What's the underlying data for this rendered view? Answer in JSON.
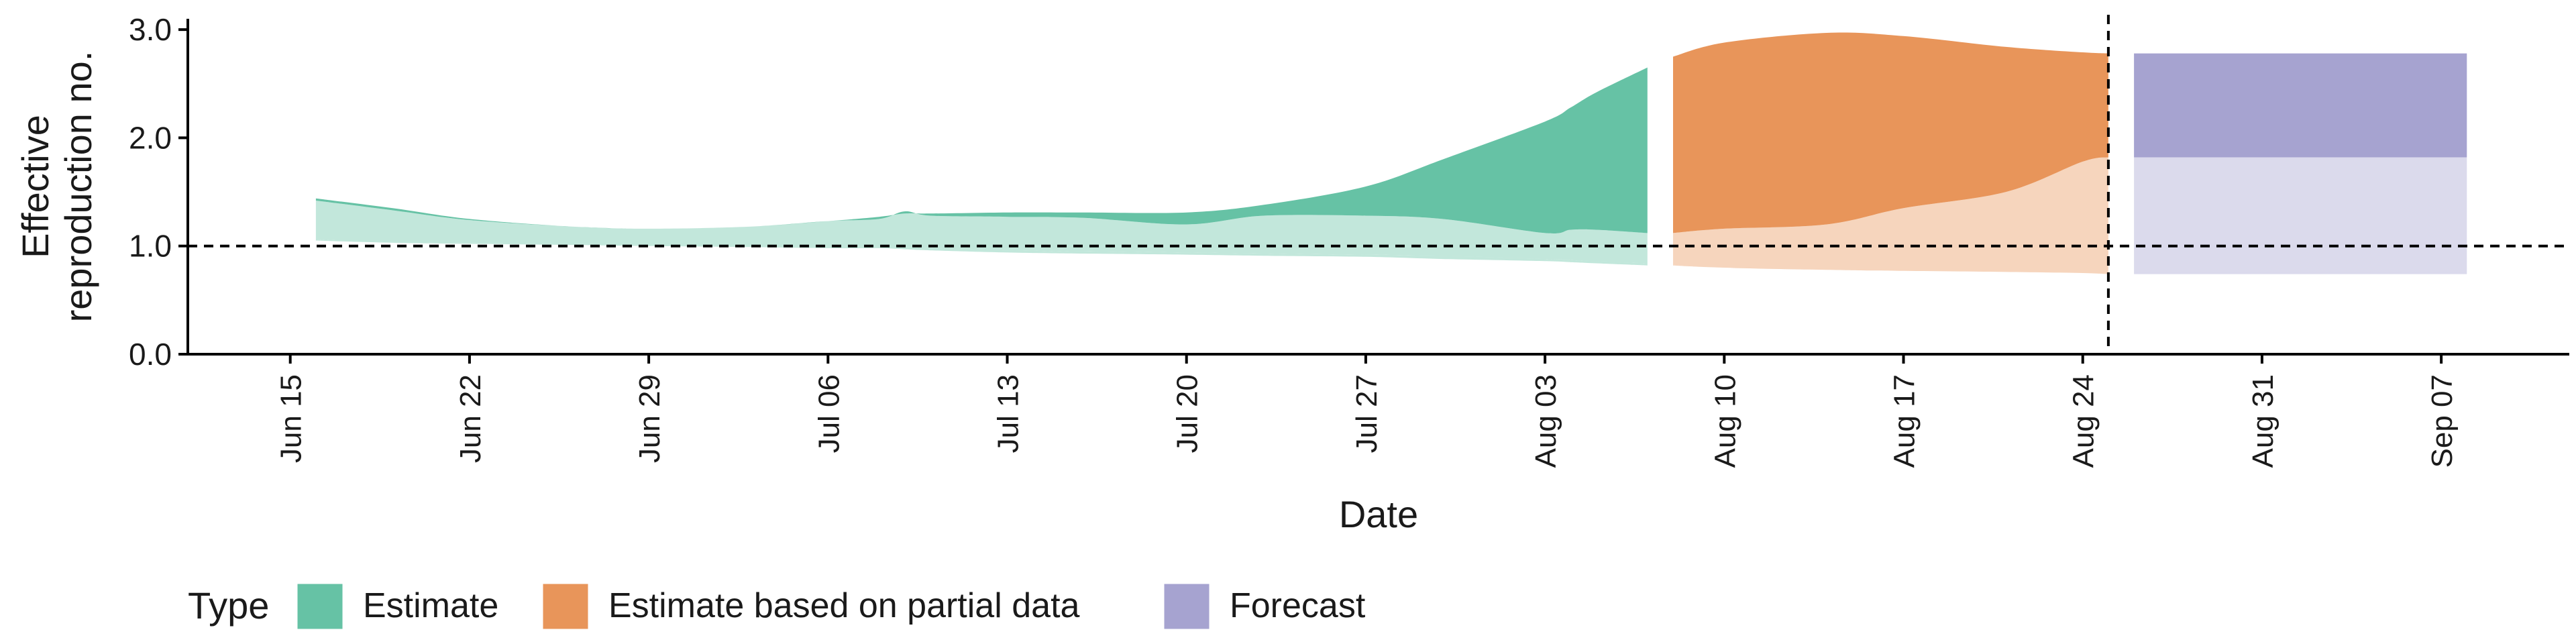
{
  "chart_data": {
    "type": "area",
    "xlabel": "Date",
    "ylabel": "Effective\nreproduction no.",
    "ylim": [
      0,
      3.1
    ],
    "yticks": [
      0.0,
      1.0,
      2.0,
      3.0
    ],
    "ytick_labels": [
      "0.0",
      "1.0",
      "2.0",
      "3.0"
    ],
    "xlim": [
      "2020-06-11",
      "2020-09-12"
    ],
    "xticks": [
      "2020-06-15",
      "2020-06-22",
      "2020-06-29",
      "2020-07-06",
      "2020-07-13",
      "2020-07-20",
      "2020-07-27",
      "2020-08-03",
      "2020-08-10",
      "2020-08-17",
      "2020-08-24",
      "2020-08-31",
      "2020-09-07"
    ],
    "xtick_labels": [
      "Jun 15",
      "Jun 22",
      "Jun 29",
      "Jul 06",
      "Jul 13",
      "Jul 20",
      "Jul 27",
      "Aug 03",
      "Aug 10",
      "Aug 17",
      "Aug 24",
      "Aug 31",
      "Sep 07"
    ],
    "reference_line_y": 1.0,
    "vertical_line_x": "2020-08-25",
    "legend": {
      "title": "Type",
      "position": "bottom",
      "items": [
        {
          "label": "Estimate",
          "color": "#66c2a5"
        },
        {
          "label": "Estimate based on partial data",
          "color": "#e8955a"
        },
        {
          "label": "Forecast",
          "color": "#a6a3d0"
        }
      ]
    },
    "series": [
      {
        "name": "Estimate",
        "color": "#66c2a5",
        "inner_opacity": 0.4,
        "x": [
          "2020-06-16",
          "2020-06-19",
          "2020-06-22",
          "2020-06-26",
          "2020-06-29",
          "2020-07-03",
          "2020-07-06",
          "2020-07-08",
          "2020-07-09",
          "2020-07-10",
          "2020-07-13",
          "2020-07-16",
          "2020-07-20",
          "2020-07-23",
          "2020-07-27",
          "2020-07-30",
          "2020-08-03",
          "2020-08-04",
          "2020-08-05",
          "2020-08-07"
        ],
        "outer_upper": [
          1.44,
          1.35,
          1.25,
          1.18,
          1.16,
          1.18,
          1.23,
          1.27,
          1.3,
          1.3,
          1.31,
          1.31,
          1.31,
          1.38,
          1.55,
          1.8,
          2.15,
          2.28,
          2.42,
          2.65
        ],
        "inner_upper": [
          1.42,
          1.33,
          1.24,
          1.18,
          1.16,
          1.18,
          1.23,
          1.25,
          1.32,
          1.28,
          1.27,
          1.26,
          1.2,
          1.28,
          1.28,
          1.25,
          1.12,
          1.15,
          1.15,
          1.12
        ],
        "inner_lower": [
          1.06,
          1.04,
          1.03,
          1.02,
          1.01,
          1.0,
          0.99,
          0.99,
          0.99,
          0.98,
          0.96,
          0.95,
          0.94,
          0.93,
          0.92,
          0.91,
          0.88,
          0.87,
          0.86,
          0.84
        ],
        "outer_lower": [
          1.05,
          1.03,
          1.02,
          1.01,
          1.0,
          0.99,
          0.98,
          0.98,
          0.97,
          0.96,
          0.94,
          0.93,
          0.92,
          0.91,
          0.9,
          0.88,
          0.86,
          0.85,
          0.84,
          0.82
        ]
      },
      {
        "name": "Estimate based on partial data",
        "color": "#e8955a",
        "inner_opacity": 0.4,
        "x": [
          "2020-08-08",
          "2020-08-10",
          "2020-08-14",
          "2020-08-17",
          "2020-08-21",
          "2020-08-24",
          "2020-08-25"
        ],
        "outer_upper": [
          2.75,
          2.88,
          2.97,
          2.94,
          2.84,
          2.79,
          2.78
        ],
        "inner_upper": [
          1.12,
          1.16,
          1.2,
          1.35,
          1.5,
          1.78,
          1.82
        ],
        "inner_lower": [
          0.83,
          0.8,
          0.78,
          0.77,
          0.76,
          0.75,
          0.74
        ],
        "outer_lower": [
          0.82,
          0.8,
          0.78,
          0.77,
          0.76,
          0.75,
          0.74
        ]
      },
      {
        "name": "Forecast",
        "color": "#a6a3d0",
        "inner_opacity": 0.4,
        "x": [
          "2020-08-26",
          "2020-09-08"
        ],
        "outer_upper": [
          2.78,
          2.78
        ],
        "inner_upper": [
          1.82,
          1.82
        ],
        "inner_lower": [
          0.74,
          0.74
        ],
        "outer_lower": [
          0.74,
          0.74
        ]
      }
    ]
  }
}
